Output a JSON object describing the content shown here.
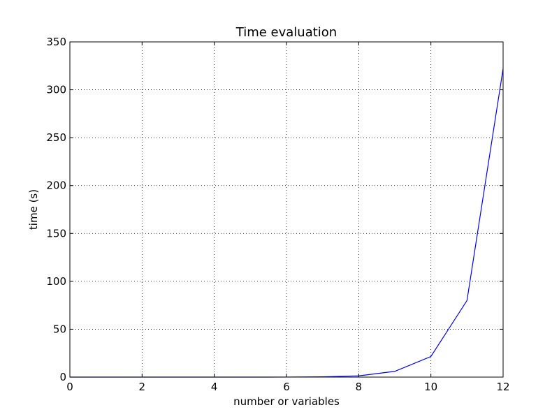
{
  "chart_data": {
    "type": "line",
    "title": "Time evaluation",
    "xlabel": "number or variables",
    "ylabel": "time (s)",
    "xlim": [
      0,
      12
    ],
    "ylim": [
      0,
      350
    ],
    "xticks": [
      0,
      2,
      4,
      6,
      8,
      10,
      12
    ],
    "yticks": [
      0,
      50,
      100,
      150,
      200,
      250,
      300,
      350
    ],
    "grid": true,
    "series": [
      {
        "color": "#0000ff",
        "x": [
          0,
          1,
          2,
          3,
          4,
          5,
          6,
          7,
          8,
          9,
          10,
          11,
          12
        ],
        "y": [
          0,
          0,
          0,
          0,
          0,
          0,
          0.05,
          0.3,
          1.3,
          6,
          21.5,
          80,
          322
        ]
      }
    ]
  }
}
